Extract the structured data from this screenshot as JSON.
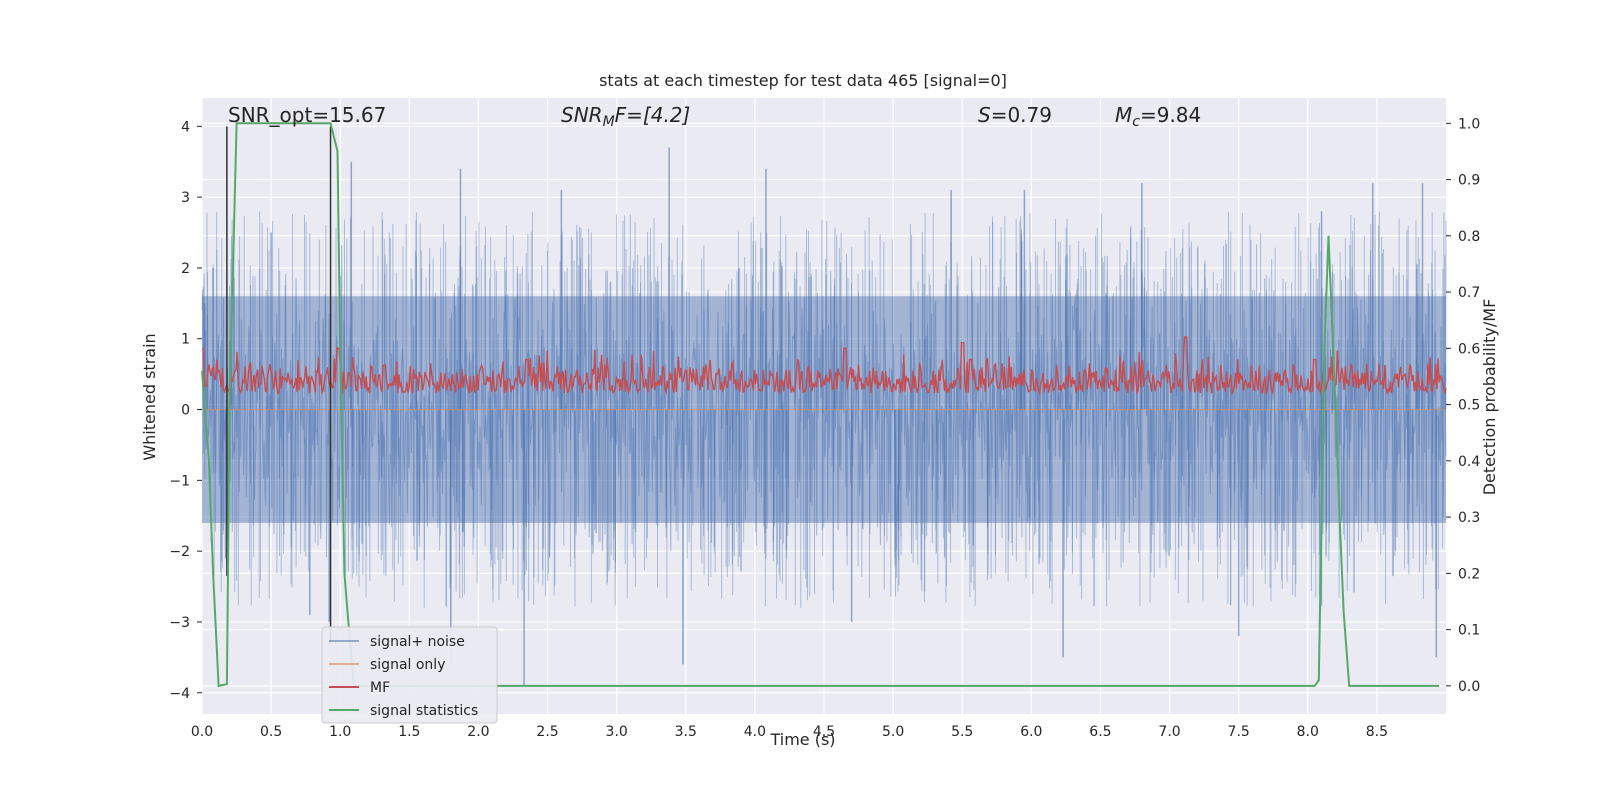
{
  "chart_data": {
    "type": "line",
    "title": "stats at each timestep for test data 465 [signal=0]",
    "xlabel": "Time (s)",
    "ylabel": "Whitened strain",
    "ylabel_right": "Detection probability/MF",
    "xlim": [
      0.0,
      9.0
    ],
    "ylim": [
      -4.3,
      4.4
    ],
    "ylim_right": [
      -0.05,
      1.045
    ],
    "xticks": [
      0.0,
      0.5,
      1.0,
      1.5,
      2.0,
      2.5,
      3.0,
      3.5,
      4.0,
      4.5,
      5.0,
      5.5,
      6.0,
      6.5,
      7.0,
      7.5,
      8.0,
      8.5
    ],
    "xtick_labels": [
      "0.0",
      "0.5",
      "1.0",
      "1.5",
      "2.0",
      "2.5",
      "3.0",
      "3.5",
      "4.0",
      "4.5",
      "5.0",
      "5.5",
      "6.0",
      "6.5",
      "7.0",
      "7.5",
      "8.0",
      "8.5"
    ],
    "yticks": [
      4,
      3,
      2,
      1,
      0,
      -1,
      -2,
      -3,
      -4
    ],
    "ytick_labels": [
      "4",
      "3",
      "2",
      "1",
      "0",
      "−1",
      "−2",
      "−3",
      "−4"
    ],
    "yticks_right": [
      1.0,
      0.9,
      0.8,
      0.7,
      0.6,
      0.5,
      0.4,
      0.3,
      0.2,
      0.1,
      0.0
    ],
    "ytick_labels_right": [
      "1.0",
      "0.9",
      "0.8",
      "0.7",
      "0.6",
      "0.5",
      "0.4",
      "0.3",
      "0.2",
      "0.1",
      "0.0"
    ],
    "grid": true,
    "legend_position": "lower-left",
    "annotations": {
      "snr_opt": "SNR_opt=15.67",
      "snr_mf_base": "SNR",
      "snr_mf_sub": "M",
      "snr_mf_rest": "F=[4.2]",
      "s_var": "S",
      "s_val": "=0.79",
      "mc_var": "M",
      "mc_sub": "c",
      "mc_val": "=9.84"
    },
    "series": [
      {
        "name": "signal+ noise",
        "axis": "left",
        "color": "#4c72b0",
        "note_amplitude_envelope": [
          1.6,
          3.2
        ],
        "values_description_peak_times": [
          [
            0.02,
            1.5
          ],
          [
            0.08,
            2.0
          ],
          [
            0.17,
            -2.1
          ],
          [
            0.5,
            2.5
          ],
          [
            0.78,
            -2.9
          ],
          [
            0.92,
            -3.0
          ],
          [
            1.08,
            3.5
          ],
          [
            1.8,
            -3.6
          ],
          [
            1.87,
            3.4
          ],
          [
            2.33,
            -3.9
          ],
          [
            2.6,
            3.1
          ],
          [
            3.38,
            3.7
          ],
          [
            3.48,
            -3.6
          ],
          [
            4.08,
            3.4
          ],
          [
            4.7,
            -3.0
          ],
          [
            5.42,
            3.1
          ],
          [
            5.95,
            3.1
          ],
          [
            6.23,
            -3.5
          ],
          [
            6.8,
            3.2
          ],
          [
            7.5,
            -3.2
          ],
          [
            8.1,
            2.8
          ],
          [
            8.47,
            3.2
          ],
          [
            8.83,
            3.2
          ],
          [
            8.93,
            -3.5
          ]
        ]
      },
      {
        "name": "signal only",
        "axis": "left",
        "color": "#dd8452",
        "x": [
          0.0,
          9.0
        ],
        "y": [
          0.0,
          0.0
        ]
      },
      {
        "name": "MF",
        "axis": "right",
        "color": "#c44e52",
        "baseline": 0.5,
        "peaks": [
          [
            0.0,
            0.6
          ],
          [
            0.98,
            0.6
          ],
          [
            1.32,
            0.57
          ],
          [
            2.35,
            0.58
          ],
          [
            4.65,
            0.6
          ],
          [
            5.5,
            0.61
          ],
          [
            5.56,
            0.58
          ],
          [
            7.12,
            0.62
          ],
          [
            8.05,
            0.58
          ]
        ]
      },
      {
        "name": "signal statistics",
        "axis": "right",
        "color": "#55a868",
        "x": [
          0.0,
          0.05,
          0.08,
          0.12,
          0.18,
          0.2,
          0.25,
          0.3,
          0.93,
          0.98,
          1.0,
          1.03,
          1.07,
          1.1,
          2.2,
          8.05,
          8.08,
          8.12,
          8.15,
          8.2,
          8.23,
          8.26,
          8.3,
          8.5,
          8.95
        ],
        "y": [
          0.56,
          0.4,
          0.2,
          0.0,
          0.003,
          0.5,
          1.0,
          1.0,
          1.0,
          0.95,
          0.6,
          0.2,
          0.08,
          0.0,
          0.0,
          0.0,
          0.01,
          0.6,
          0.8,
          0.5,
          0.3,
          0.13,
          0.0,
          0.0,
          0.0
        ]
      }
    ],
    "vertical_lines": [
      {
        "x": 0.18,
        "y_top": 4.0,
        "y_bottom": -2.35,
        "color": "#333333"
      },
      {
        "x": 0.93,
        "y_top": 4.0,
        "y_bottom": -3.3,
        "color": "#333333"
      }
    ]
  }
}
